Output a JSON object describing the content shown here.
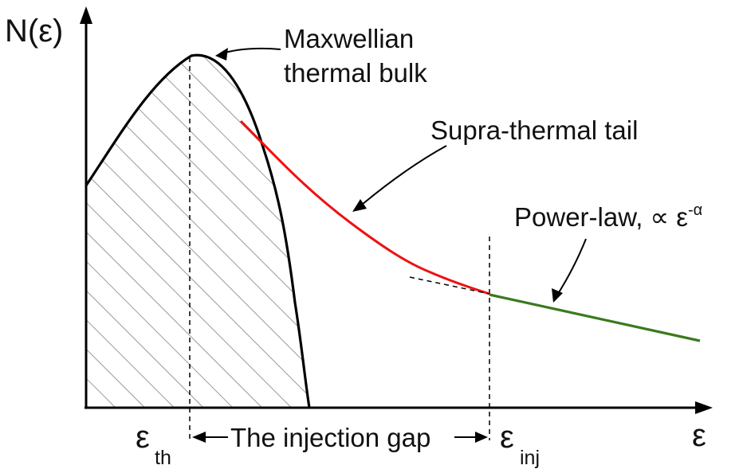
{
  "axes": {
    "y_label": "N(ε)",
    "x_label": "ε"
  },
  "annotations": {
    "maxwellian_line1": "Maxwellian",
    "maxwellian_line2": "thermal bulk",
    "suprathermal": "Supra-thermal tail",
    "powerlaw_prefix": "Power-law, ∝ ε",
    "powerlaw_exponent": "-α",
    "injection_gap": "The injection gap"
  },
  "ticks": {
    "eps_th_symbol": "ε",
    "eps_th_sub": "th",
    "eps_inj_symbol": "ε",
    "eps_inj_sub": "inj"
  },
  "colors": {
    "bulk": "#000000",
    "tail": "#ee1111",
    "powerlaw": "#3a7a1e",
    "hatch": "#808080"
  }
}
